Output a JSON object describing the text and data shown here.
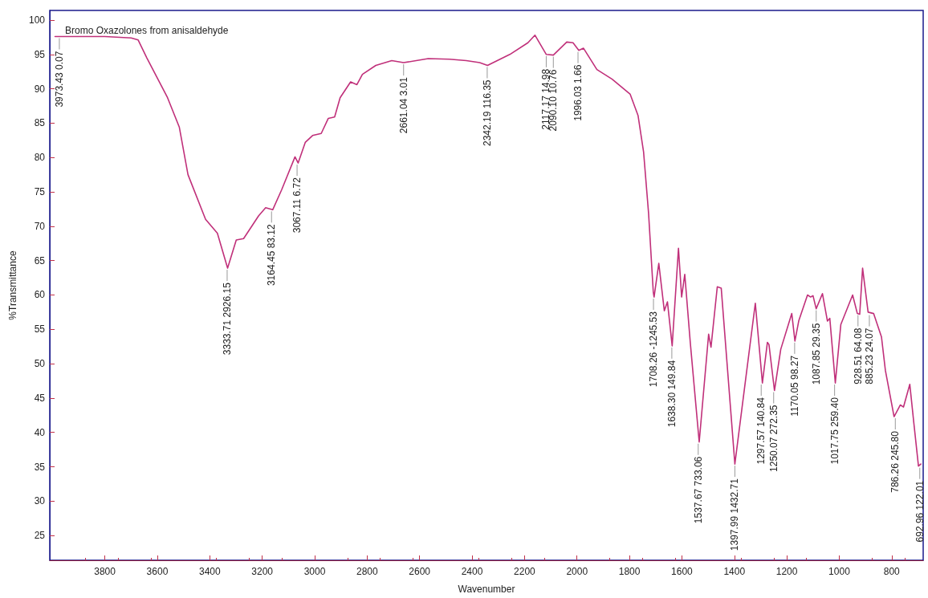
{
  "chart_data": {
    "type": "line",
    "title": "Bromo Oxazolones from anisaldehyde",
    "xlabel": "Wavenumber",
    "ylabel": "%Transmittance",
    "xlim": [
      4010,
      680
    ],
    "xticks": [
      3800,
      3600,
      3400,
      3200,
      3000,
      2800,
      2600,
      2400,
      2200,
      2000,
      1800,
      1600,
      1400,
      1200,
      1000,
      800
    ],
    "ylim": [
      21.4,
      101.4
    ],
    "yticks": [
      25,
      30,
      35,
      40,
      45,
      50,
      55,
      60,
      65,
      70,
      75,
      80,
      85,
      90,
      95,
      100
    ],
    "marker": "none",
    "line_style": "solid",
    "series": [
      {
        "color": "#c0307a",
        "x": [
          3990,
          3900,
          3800,
          3700,
          3673,
          3640,
          3561,
          3516,
          3483,
          3416,
          3371,
          3332,
          3299,
          3271,
          3214,
          3187,
          3160,
          3126,
          3075,
          3063,
          3036,
          3008,
          2975,
          2948,
          2924,
          2903,
          2863,
          2839,
          2818,
          2767,
          2706,
          2661,
          2567,
          2486,
          2422,
          2371,
          2341,
          2256,
          2187,
          2160,
          2117,
          2090,
          2039,
          2015,
          1993,
          1975,
          1924,
          1866,
          1797,
          1767,
          1746,
          1727,
          1709,
          1706,
          1688,
          1667,
          1655,
          1637,
          1613,
          1601,
          1589,
          1568,
          1534,
          1498,
          1489,
          1465,
          1450,
          1398,
          1320,
          1293,
          1274,
          1268,
          1247,
          1223,
          1181,
          1169,
          1154,
          1121,
          1109,
          1100,
          1088,
          1064,
          1045,
          1036,
          1015,
          994,
          949,
          931,
          922,
          911,
          890,
          869,
          839,
          824,
          791,
          767,
          755,
          731,
          716,
          698,
          689
        ],
        "values": [
          97.6,
          97.6,
          97.6,
          97.4,
          97.1,
          94.5,
          88.7,
          84.4,
          77.5,
          71.0,
          69.0,
          63.9,
          68.0,
          68.2,
          71.5,
          72.7,
          72.4,
          75.3,
          80.1,
          79.2,
          82.2,
          83.2,
          83.5,
          85.7,
          85.9,
          88.7,
          91.0,
          90.6,
          92.1,
          93.4,
          94.1,
          93.8,
          94.4,
          94.3,
          94.1,
          93.8,
          93.4,
          95.0,
          96.7,
          97.8,
          95.0,
          94.9,
          96.8,
          96.7,
          95.6,
          95.9,
          92.8,
          91.4,
          89.2,
          86.1,
          80.8,
          71.9,
          60.4,
          59.7,
          64.6,
          57.7,
          59.0,
          52.6,
          66.8,
          59.7,
          63.0,
          53.1,
          38.6,
          54.3,
          52.4,
          61.2,
          61.0,
          35.4,
          58.8,
          47.2,
          53.1,
          52.8,
          46.1,
          52.1,
          57.3,
          53.3,
          56.3,
          60.0,
          59.7,
          59.9,
          58.0,
          60.2,
          56.2,
          56.6,
          47.2,
          55.7,
          60.0,
          57.3,
          57.2,
          63.9,
          57.5,
          57.3,
          53.9,
          49.0,
          42.3,
          44.0,
          43.7,
          47.0,
          41.5,
          35.1,
          35.4
        ]
      }
    ],
    "annotations": [
      {
        "text": "3973.43 0.07",
        "x": 3973.43,
        "y": 97.6
      },
      {
        "text": "3333.71 2926.15",
        "x": 3333.71,
        "y": 63.9
      },
      {
        "text": "3164.45 83.12",
        "x": 3164.45,
        "y": 72.4
      },
      {
        "text": "3067.11 6.72",
        "x": 3067.11,
        "y": 79.2
      },
      {
        "text": "2661.04 3.01",
        "x": 2661.04,
        "y": 93.8
      },
      {
        "text": "2342.19 116.35",
        "x": 2342.19,
        "y": 93.4
      },
      {
        "text": "2117.17 14.98",
        "x": 2117.17,
        "y": 95.0
      },
      {
        "text": "2090.10 10.76",
        "x": 2090.1,
        "y": 94.9
      },
      {
        "text": "1996.03 1.66",
        "x": 1996.03,
        "y": 95.6
      },
      {
        "text": "1708.26 -1245.53",
        "x": 1708.26,
        "y": 59.7
      },
      {
        "text": "1638.30 149.84",
        "x": 1638.3,
        "y": 52.6
      },
      {
        "text": "1537.67 733.06",
        "x": 1537.67,
        "y": 38.6
      },
      {
        "text": "1397.99 1432.71",
        "x": 1397.99,
        "y": 35.4
      },
      {
        "text": "1297.57 140.84",
        "x": 1297.57,
        "y": 47.2
      },
      {
        "text": "1250.07 272.35",
        "x": 1250.07,
        "y": 46.1
      },
      {
        "text": "1170.05 98.27",
        "x": 1170.05,
        "y": 53.3
      },
      {
        "text": "1087.85 29.35",
        "x": 1087.85,
        "y": 58.0
      },
      {
        "text": "1017.75 259.40",
        "x": 1017.75,
        "y": 47.2
      },
      {
        "text": "928.51 64.08",
        "x": 928.51,
        "y": 57.3
      },
      {
        "text": "885.23 24.07",
        "x": 885.23,
        "y": 57.3
      },
      {
        "text": "786.26 245.80",
        "x": 786.26,
        "y": 42.3
      },
      {
        "text": "692.96 122.01",
        "x": 692.96,
        "y": 35.1
      }
    ]
  }
}
